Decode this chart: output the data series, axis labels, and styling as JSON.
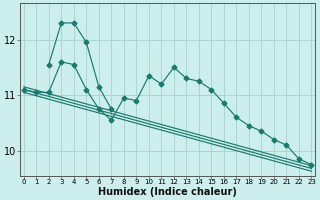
{
  "xlabel": "Humidex (Indice chaleur)",
  "background_color": "#cceeed",
  "grid_color": "#aad4d2",
  "line_color": "#1a7a6e",
  "x_ticks": [
    0,
    1,
    2,
    3,
    4,
    5,
    6,
    7,
    8,
    9,
    10,
    11,
    12,
    13,
    14,
    15,
    16,
    17,
    18,
    19,
    20,
    21,
    22,
    23
  ],
  "y_ticks": [
    10,
    11,
    12
  ],
  "xlim": [
    -0.3,
    23.3
  ],
  "ylim": [
    9.55,
    12.65
  ],
  "series_jagged": {
    "x": [
      0,
      1,
      2,
      3,
      4,
      5,
      6,
      7,
      8,
      9,
      10,
      11,
      12,
      13,
      14,
      15,
      16,
      17,
      18,
      19,
      20,
      21,
      22,
      23
    ],
    "y": [
      11.1,
      11.05,
      11.05,
      11.6,
      11.55,
      11.1,
      10.75,
      10.55,
      10.95,
      10.9,
      11.35,
      11.2,
      11.5,
      11.3,
      11.25,
      11.1,
      10.85,
      10.6,
      10.45,
      10.35,
      10.2,
      10.1,
      9.85,
      9.75
    ]
  },
  "series_upper_jagged": {
    "x": [
      2,
      3,
      4,
      5,
      6,
      7
    ],
    "y": [
      11.55,
      12.3,
      12.3,
      11.95,
      11.15,
      10.75
    ]
  },
  "series_trend1": {
    "x": [
      0,
      23
    ],
    "y": [
      11.15,
      9.73
    ]
  },
  "series_trend2": {
    "x": [
      0,
      23
    ],
    "y": [
      11.05,
      9.63
    ]
  },
  "series_trend3": {
    "x": [
      0,
      23
    ],
    "y": [
      11.1,
      9.68
    ]
  }
}
